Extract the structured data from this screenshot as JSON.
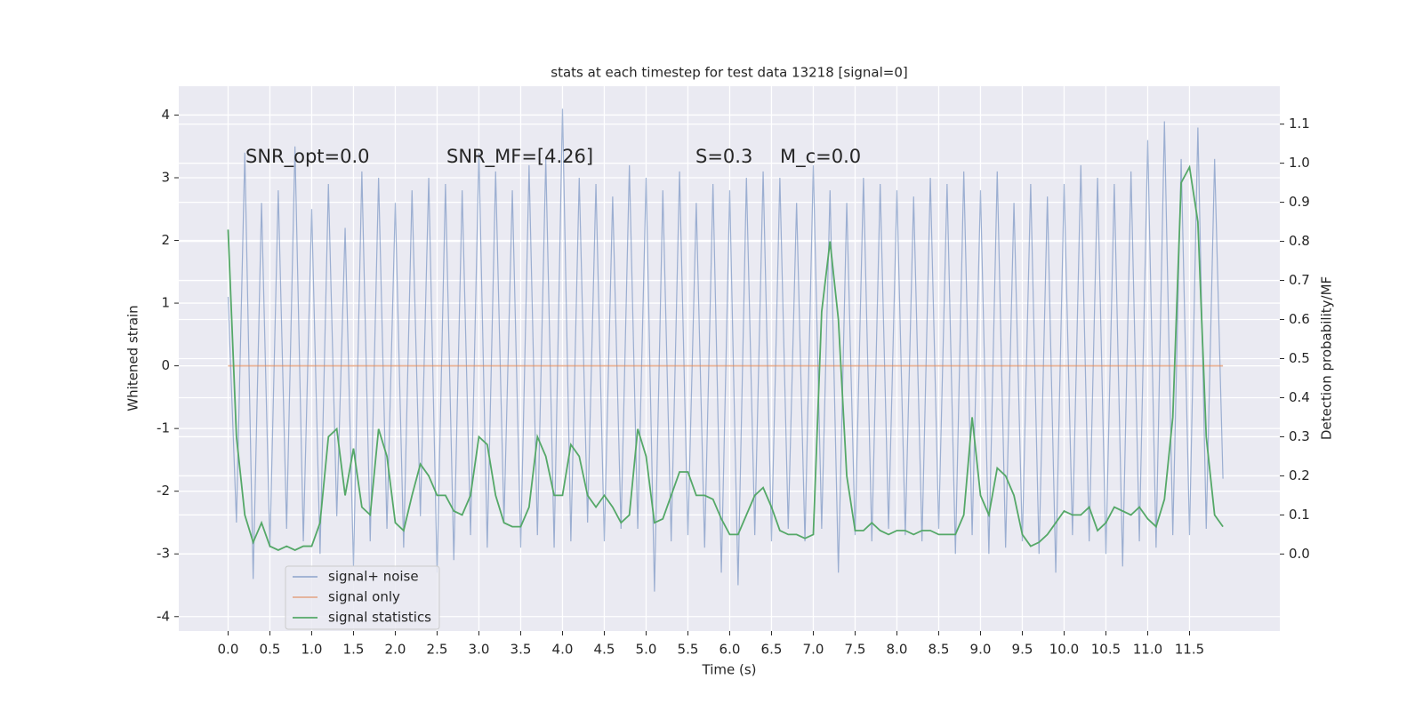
{
  "chart_data": {
    "type": "line",
    "title": "stats at each timestep for test data 13218 [signal=0]",
    "xlabel": "Time (s)",
    "ylabel": "Whitened strain",
    "y2label": "Detection probability/MF",
    "annotations": [
      "SNR_opt=0.0",
      "SNR_MF=[4.26]",
      "S=0.3",
      "M_c=0.0"
    ],
    "xlim": [
      -0.59,
      12.58
    ],
    "ylim": [
      -4.23,
      4.46
    ],
    "y2lim": [
      -0.197,
      1.197
    ],
    "xticks": [
      {
        "value": 0,
        "label": "0.0"
      },
      0.5,
      {
        "value": 1,
        "label": "1.0"
      },
      1.5,
      {
        "value": 2,
        "label": "2.0"
      },
      2.5,
      {
        "value": 3,
        "label": "3.0"
      },
      3.5,
      {
        "value": 4,
        "label": "4.0"
      },
      4.5,
      {
        "value": 5,
        "label": "5.0"
      },
      5.5,
      {
        "value": 6,
        "label": "6.0"
      },
      6.5,
      {
        "value": 7,
        "label": "7.0"
      },
      7.5,
      {
        "value": 8,
        "label": "8.0"
      },
      8.5,
      {
        "value": 9,
        "label": "9.0"
      },
      9.5,
      {
        "value": 10,
        "label": "10.0"
      },
      10.5,
      {
        "value": 11,
        "label": "11.0"
      },
      11.5
    ],
    "yticks": [
      -4,
      -3,
      -2,
      -1,
      0,
      1,
      2,
      3,
      4
    ],
    "y2ticks": [
      {
        "value": 0,
        "label": "0.0"
      },
      0.1,
      0.2,
      0.3,
      0.4,
      0.5,
      0.6,
      0.7,
      0.8,
      0.9,
      {
        "value": 1,
        "label": "1.0"
      },
      1.1
    ],
    "grid": true,
    "legend": "lower left",
    "series": [
      {
        "name": "signal+ noise",
        "color": "#4c72b0",
        "x": [
          0.0,
          0.1,
          0.2,
          0.3,
          0.4,
          0.5,
          0.6,
          0.7,
          0.8,
          0.9,
          1.0,
          1.1,
          1.2,
          1.3,
          1.4,
          1.5,
          1.6,
          1.7,
          1.8,
          1.9,
          2.0,
          2.1,
          2.2,
          2.3,
          2.4,
          2.5,
          2.6,
          2.7,
          2.8,
          2.9,
          3.0,
          3.1,
          3.2,
          3.3,
          3.4,
          3.5,
          3.6,
          3.7,
          3.8,
          3.9,
          4.0,
          4.1,
          4.2,
          4.3,
          4.4,
          4.5,
          4.6,
          4.7,
          4.8,
          4.9,
          5.0,
          5.1,
          5.2,
          5.3,
          5.4,
          5.5,
          5.6,
          5.7,
          5.8,
          5.9,
          6.0,
          6.1,
          6.2,
          6.3,
          6.4,
          6.5,
          6.6,
          6.7,
          6.8,
          6.9,
          7.0,
          7.1,
          7.2,
          7.3,
          7.4,
          7.5,
          7.6,
          7.7,
          7.8,
          7.9,
          8.0,
          8.1,
          8.2,
          8.3,
          8.4,
          8.5,
          8.6,
          8.7,
          8.8,
          8.9,
          9.0,
          9.1,
          9.2,
          9.3,
          9.4,
          9.5,
          9.6,
          9.7,
          9.8,
          9.9,
          10.0,
          10.1,
          10.2,
          10.3,
          10.4,
          10.5,
          10.6,
          10.7,
          10.8,
          10.9,
          11.0,
          11.1,
          11.2,
          11.3,
          11.4,
          11.5,
          11.6,
          11.7,
          11.8,
          11.9
        ],
        "values": [
          1.1,
          -2.5,
          3.4,
          -3.4,
          2.6,
          -2.9,
          2.8,
          -2.6,
          3.5,
          -2.8,
          2.5,
          -3.0,
          2.9,
          -2.4,
          2.2,
          -3.2,
          3.1,
          -2.8,
          3.0,
          -2.6,
          2.6,
          -2.9,
          2.8,
          -2.4,
          3.0,
          -3.3,
          2.9,
          -3.1,
          2.8,
          -2.7,
          3.4,
          -2.9,
          3.1,
          -2.5,
          2.8,
          -2.9,
          3.2,
          -2.7,
          3.3,
          -2.9,
          4.1,
          -2.8,
          3.0,
          -2.5,
          2.9,
          -2.8,
          2.7,
          -2.6,
          3.2,
          -2.6,
          3.0,
          -3.6,
          2.8,
          -2.8,
          3.1,
          -2.7,
          2.6,
          -2.9,
          2.9,
          -3.3,
          2.8,
          -3.5,
          3.0,
          -2.7,
          3.1,
          -2.8,
          3.0,
          -2.6,
          2.6,
          -2.8,
          3.2,
          -2.6,
          2.8,
          -3.3,
          2.6,
          -2.7,
          3.0,
          -2.8,
          2.9,
          -2.6,
          2.8,
          -2.7,
          2.7,
          -2.8,
          3.0,
          -2.6,
          2.9,
          -3.0,
          3.1,
          -2.7,
          2.8,
          -3.0,
          3.1,
          -2.9,
          2.6,
          -2.8,
          2.9,
          -3.0,
          2.7,
          -3.3,
          2.9,
          -2.7,
          3.2,
          -2.8,
          3.0,
          -3.0,
          2.9,
          -3.2,
          3.1,
          -2.8,
          3.6,
          -2.9,
          3.9,
          -2.7,
          3.3,
          -2.7,
          3.8,
          -2.6,
          3.3,
          -1.8
        ]
      },
      {
        "name": "signal only",
        "color": "#dd8452",
        "x": [
          0.0,
          11.9
        ],
        "values": [
          0,
          0
        ]
      },
      {
        "name": "signal statistics",
        "color": "#55a868",
        "axis": "y2",
        "x": [
          0.0,
          0.1,
          0.2,
          0.3,
          0.4,
          0.5,
          0.6,
          0.7,
          0.8,
          0.9,
          1.0,
          1.1,
          1.2,
          1.3,
          1.4,
          1.5,
          1.6,
          1.7,
          1.8,
          1.9,
          2.0,
          2.1,
          2.2,
          2.3,
          2.4,
          2.5,
          2.6,
          2.7,
          2.8,
          2.9,
          3.0,
          3.1,
          3.2,
          3.3,
          3.4,
          3.5,
          3.6,
          3.7,
          3.8,
          3.9,
          4.0,
          4.1,
          4.2,
          4.3,
          4.4,
          4.5,
          4.6,
          4.7,
          4.8,
          4.9,
          5.0,
          5.1,
          5.2,
          5.3,
          5.4,
          5.5,
          5.6,
          5.7,
          5.8,
          5.9,
          6.0,
          6.1,
          6.2,
          6.3,
          6.4,
          6.5,
          6.6,
          6.7,
          6.8,
          6.9,
          7.0,
          7.1,
          7.2,
          7.3,
          7.4,
          7.5,
          7.6,
          7.7,
          7.8,
          7.9,
          8.0,
          8.1,
          8.2,
          8.3,
          8.4,
          8.5,
          8.6,
          8.7,
          8.8,
          8.9,
          9.0,
          9.1,
          9.2,
          9.3,
          9.4,
          9.5,
          9.6,
          9.7,
          9.8,
          9.9,
          10.0,
          10.1,
          10.2,
          10.3,
          10.4,
          10.5,
          10.6,
          10.7,
          10.8,
          10.9,
          11.0,
          11.1,
          11.2,
          11.3,
          11.4,
          11.5,
          11.6,
          11.7,
          11.8,
          11.9
        ],
        "values": [
          0.83,
          0.3,
          0.1,
          0.03,
          0.08,
          0.02,
          0.01,
          0.02,
          0.01,
          0.02,
          0.02,
          0.08,
          0.3,
          0.32,
          0.15,
          0.27,
          0.12,
          0.1,
          0.32,
          0.25,
          0.08,
          0.06,
          0.15,
          0.23,
          0.2,
          0.15,
          0.15,
          0.11,
          0.1,
          0.15,
          0.3,
          0.28,
          0.15,
          0.08,
          0.07,
          0.07,
          0.12,
          0.3,
          0.25,
          0.15,
          0.15,
          0.28,
          0.25,
          0.15,
          0.12,
          0.15,
          0.12,
          0.08,
          0.1,
          0.32,
          0.25,
          0.08,
          0.09,
          0.15,
          0.21,
          0.21,
          0.15,
          0.15,
          0.14,
          0.09,
          0.05,
          0.05,
          0.1,
          0.15,
          0.17,
          0.12,
          0.06,
          0.05,
          0.05,
          0.04,
          0.05,
          0.62,
          0.8,
          0.6,
          0.2,
          0.06,
          0.06,
          0.08,
          0.06,
          0.05,
          0.06,
          0.06,
          0.05,
          0.06,
          0.06,
          0.05,
          0.05,
          0.05,
          0.1,
          0.35,
          0.15,
          0.1,
          0.22,
          0.2,
          0.15,
          0.05,
          0.02,
          0.03,
          0.05,
          0.08,
          0.11,
          0.1,
          0.1,
          0.12,
          0.06,
          0.08,
          0.12,
          0.11,
          0.1,
          0.12,
          0.09,
          0.07,
          0.14,
          0.35,
          0.95,
          0.99,
          0.85,
          0.3,
          0.1,
          0.07
        ]
      }
    ]
  }
}
